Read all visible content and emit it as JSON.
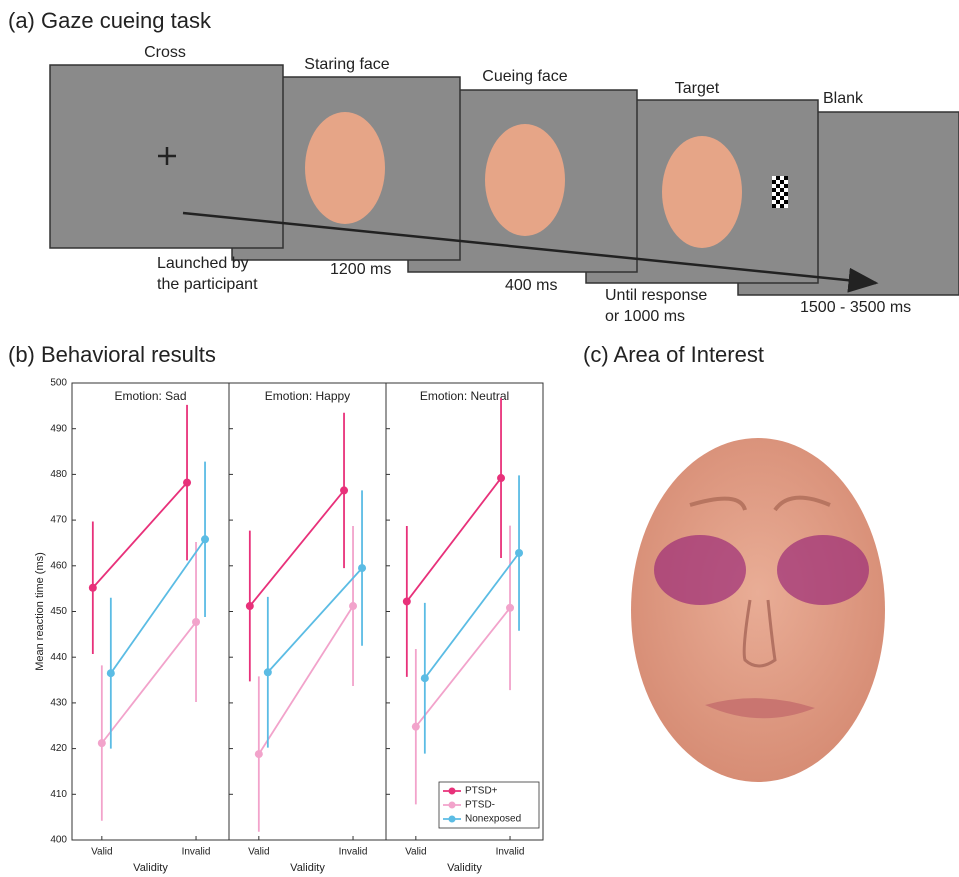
{
  "gaze_task": {
    "title": "(a) Gaze cueing task",
    "screens": [
      {
        "label": "Cross",
        "duration": [
          "Launched by",
          "the participant"
        ]
      },
      {
        "label": "Staring face",
        "duration": [
          "1200 ms"
        ]
      },
      {
        "label": "Cueing face",
        "duration": [
          "400 ms"
        ]
      },
      {
        "label": "Target",
        "duration": [
          "Until response",
          "or 1000 ms"
        ]
      },
      {
        "label": "Blank",
        "duration": [
          "1500 - 3500 ms"
        ]
      }
    ]
  },
  "behavioral_results": {
    "title": "(b) Behavioral results"
  },
  "chart_data": [
    {
      "type": "line",
      "title": "Emotion: Sad",
      "xlabel": "Validity",
      "ylabel": "Mean reaction time (ms)",
      "categories": [
        "Valid",
        "Invalid"
      ],
      "ylim": [
        400,
        500
      ],
      "yticks": [
        400,
        410,
        420,
        430,
        440,
        450,
        460,
        470,
        480,
        490,
        500
      ],
      "series": [
        {
          "color": "#e8317a",
          "values": [
            455.2,
            478.2
          ],
          "errors": [
            14.5,
            17
          ]
        },
        {
          "color": "#f2a3cb",
          "values": [
            421.2,
            447.7
          ],
          "errors": [
            17,
            17.5
          ]
        },
        {
          "color": "#5bbce4",
          "values": [
            436.5,
            465.8
          ],
          "errors": [
            16.5,
            17
          ]
        }
      ]
    },
    {
      "type": "line",
      "title": "Emotion: Happy",
      "xlabel": "Validity",
      "categories": [
        "Valid",
        "Invalid"
      ],
      "ylim": [
        400,
        500
      ],
      "yticks": [
        400,
        410,
        420,
        430,
        440,
        450,
        460,
        470,
        480,
        490,
        500
      ],
      "series": [
        {
          "color": "#e8317a",
          "values": [
            451.2,
            476.5
          ],
          "errors": [
            16.5,
            17
          ]
        },
        {
          "color": "#f2a3cb",
          "values": [
            418.8,
            451.2
          ],
          "errors": [
            17,
            17.5
          ]
        },
        {
          "color": "#5bbce4",
          "values": [
            436.7,
            459.5
          ],
          "errors": [
            16.5,
            17
          ]
        }
      ]
    },
    {
      "type": "line",
      "title": "Emotion: Neutral",
      "xlabel": "Validity",
      "categories": [
        "Valid",
        "Invalid"
      ],
      "ylim": [
        400,
        500
      ],
      "yticks": [
        400,
        410,
        420,
        430,
        440,
        450,
        460,
        470,
        480,
        490,
        500
      ],
      "legend": "lower right",
      "series": [
        {
          "name": "PTSD+",
          "color": "#e8317a",
          "values": [
            452.2,
            479.2
          ],
          "errors": [
            16.5,
            17.5
          ]
        },
        {
          "name": "PTSD-",
          "color": "#f2a3cb",
          "values": [
            424.8,
            450.8
          ],
          "errors": [
            17,
            18
          ]
        },
        {
          "name": "Nonexposed",
          "color": "#5bbce4",
          "values": [
            435.4,
            462.8
          ],
          "errors": [
            16.5,
            17
          ]
        }
      ]
    }
  ],
  "area_of_interest": {
    "title": "(c) Area of Interest"
  }
}
